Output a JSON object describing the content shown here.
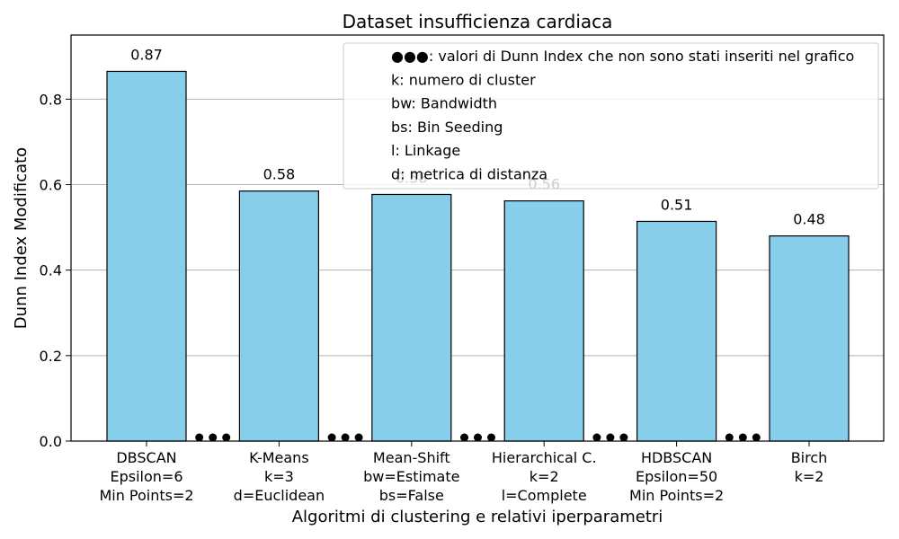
{
  "chart_data": {
    "type": "bar",
    "title": "Dataset insufficienza cardiaca",
    "xlabel": "Algoritmi di clustering e relativi iperparametri",
    "ylabel": "Dunn Index Modificato",
    "ylim": [
      0,
      0.95
    ],
    "yticks": [
      "0.0",
      "0.2",
      "0.4",
      "0.6",
      "0.8"
    ],
    "ytick_values": [
      0.0,
      0.2,
      0.4,
      0.6,
      0.8
    ],
    "grid": "horizontal",
    "bar_color": "#87ceeb",
    "bar_edge_color": "#000000",
    "categories": [
      {
        "lines": [
          "DBSCAN",
          "Epsilon=6",
          "Min Points=2"
        ]
      },
      {
        "lines": [
          "K-Means",
          "k=3",
          "d=Euclidean"
        ]
      },
      {
        "lines": [
          "Mean-Shift",
          "bw=Estimate",
          "bs=False"
        ]
      },
      {
        "lines": [
          "Hierarchical C.",
          "k=2",
          "l=Complete"
        ]
      },
      {
        "lines": [
          "HDBSCAN",
          "Epsilon=50",
          "Min Points=2"
        ]
      },
      {
        "lines": [
          "Birch",
          "k=2"
        ]
      }
    ],
    "values": [
      0.865,
      0.585,
      0.577,
      0.562,
      0.514,
      0.48
    ],
    "data_labels": [
      "0.87",
      "0.58",
      "0.58",
      "0.56",
      "0.51",
      "0.48"
    ],
    "gap_marker": "●●●",
    "legend": {
      "placement": "top-right",
      "entries": [
        "●●●: valori di Dunn Index che non sono stati inseriti nel grafico",
        "k: numero di cluster",
        "bw: Bandwidth",
        "bs: Bin Seeding",
        "l: Linkage",
        "d: metrica di distanza"
      ]
    }
  }
}
